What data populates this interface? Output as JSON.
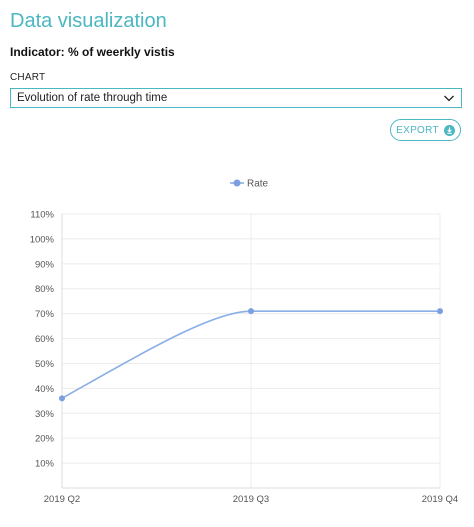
{
  "header": {
    "title": "Data visualization",
    "indicator": "Indicator: % of weerkly vistis"
  },
  "chart_select": {
    "label": "CHART",
    "selected": "Evolution of rate through time"
  },
  "export_button": {
    "label": "EXPORT"
  },
  "colors": {
    "accent": "#4ab7c1",
    "series": "#8aaee6",
    "point": "#7b9fe0"
  },
  "chart_data": {
    "type": "line",
    "categories": [
      "2019 Q2",
      "2019 Q3",
      "2019 Q4"
    ],
    "series": [
      {
        "name": "Rate",
        "values": [
          36,
          71,
          71
        ]
      }
    ],
    "yticks": [
      "10%",
      "20%",
      "30%",
      "40%",
      "50%",
      "60%",
      "70%",
      "80%",
      "90%",
      "100%",
      "110%"
    ],
    "ylim": [
      0,
      110
    ],
    "legend": "top-center",
    "grid": true,
    "smooth": true
  }
}
